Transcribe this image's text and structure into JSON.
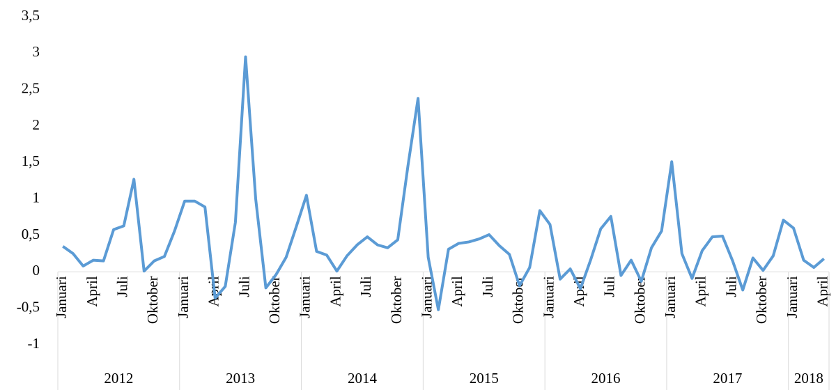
{
  "chart_data": {
    "type": "line",
    "color": "#5b9bd5",
    "ylim": [
      -1,
      3.5
    ],
    "yticks": [
      -1,
      {
        "value": -0.5,
        "label": "-0,5"
      },
      0,
      {
        "value": 0.5,
        "label": "0,5"
      },
      1,
      {
        "value": 1.5,
        "label": "1,5"
      },
      2,
      {
        "value": 2.5,
        "label": "2,5"
      },
      3,
      {
        "value": 3.5,
        "label": "3,5"
      }
    ],
    "groups": [
      {
        "name": "2012",
        "categories": [
          "Januari",
          null,
          null,
          "April",
          null,
          null,
          "Juli",
          null,
          null,
          "Oktober",
          null,
          null
        ]
      },
      {
        "name": "2013",
        "categories": [
          "Januari",
          null,
          null,
          "April",
          null,
          null,
          "Juli",
          null,
          null,
          "Oktober",
          null,
          null
        ]
      },
      {
        "name": "2014",
        "categories": [
          "Januari",
          null,
          null,
          "April",
          null,
          null,
          "Juli",
          null,
          null,
          "Oktober",
          null,
          null
        ]
      },
      {
        "name": "2015",
        "categories": [
          "Januari",
          null,
          null,
          "April",
          null,
          null,
          "Juli",
          null,
          null,
          "Oktober",
          null,
          null
        ]
      },
      {
        "name": "2016",
        "categories": [
          "Januari",
          null,
          null,
          "April",
          null,
          null,
          "Juli",
          null,
          null,
          "Oktober",
          null,
          null
        ]
      },
      {
        "name": "2017",
        "categories": [
          "Januari",
          null,
          null,
          "April",
          null,
          null,
          "Juli",
          null,
          null,
          "Oktober",
          null,
          null
        ]
      },
      {
        "name": "2018",
        "categories": [
          "Januari",
          null,
          null,
          "April"
        ]
      }
    ],
    "values": [
      0.35,
      0.25,
      0.08,
      0.16,
      0.15,
      0.58,
      0.63,
      1.27,
      0.01,
      0.15,
      0.21,
      0.56,
      0.97,
      0.97,
      0.89,
      -0.36,
      -0.2,
      0.68,
      2.95,
      1.0,
      -0.22,
      -0.04,
      0.2,
      0.62,
      1.05,
      0.28,
      0.23,
      0.01,
      0.22,
      0.37,
      0.48,
      0.37,
      0.33,
      0.44,
      1.45,
      2.38,
      0.2,
      -0.52,
      0.31,
      0.39,
      0.41,
      0.45,
      0.51,
      0.36,
      0.24,
      -0.19,
      0.06,
      0.84,
      0.65,
      -0.1,
      0.04,
      -0.23,
      0.16,
      0.59,
      0.76,
      -0.05,
      0.16,
      -0.13,
      0.33,
      0.56,
      1.51,
      0.25,
      -0.09,
      0.29,
      0.48,
      0.49,
      0.15,
      -0.25,
      0.19,
      0.02,
      0.22,
      0.71,
      0.6,
      0.16,
      0.06,
      0.18
    ]
  }
}
